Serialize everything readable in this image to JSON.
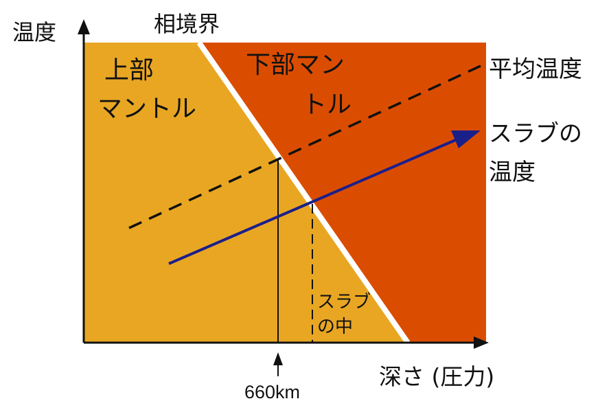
{
  "axes": {
    "y_label": "温度",
    "x_label": "深さ (圧力)"
  },
  "regions": {
    "upper_mantle_line1": "上部",
    "upper_mantle_line2": "マントル",
    "lower_mantle_line1": "下部マン",
    "lower_mantle_line2": "トル"
  },
  "boundary": {
    "label": "相境界"
  },
  "lines": {
    "average_temperature_label": "平均温度",
    "slab_temperature_line1": "スラブの",
    "slab_temperature_line2": "温度"
  },
  "markers": {
    "depth_660": "660km",
    "slab_interior_line1": "スラブ",
    "slab_interior_line2": "の中"
  },
  "colors": {
    "upper_mantle": "#E8A623",
    "lower_mantle": "#DA4D00",
    "slab_line": "#1B1F8A",
    "boundary_line": "#FFFFFF"
  }
}
